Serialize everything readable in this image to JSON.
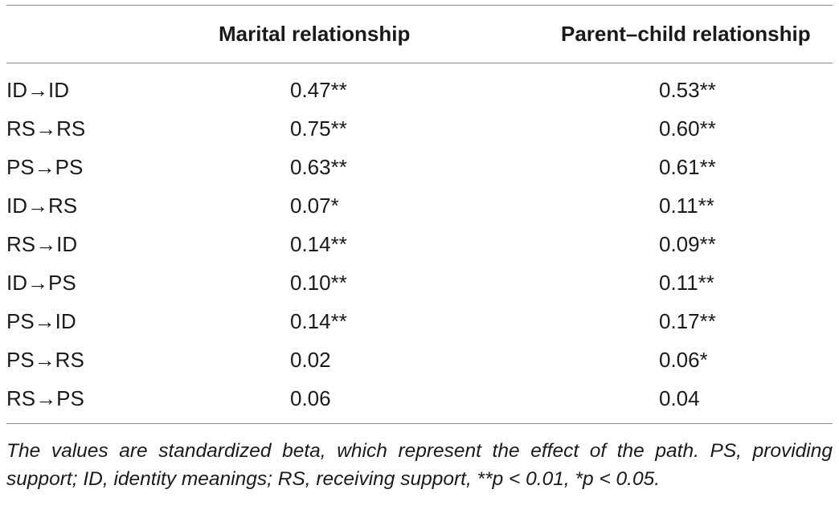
{
  "table": {
    "headers": {
      "path": "",
      "marital": "Marital relationship",
      "parent_child": "Parent–child relationship"
    },
    "rows": [
      {
        "path": "ID→ID",
        "marital": "0.47**",
        "parent_child": "0.53**"
      },
      {
        "path": "RS→RS",
        "marital": "0.75**",
        "parent_child": "0.60**"
      },
      {
        "path": "PS→PS",
        "marital": "0.63**",
        "parent_child": "0.61**"
      },
      {
        "path": "ID→RS",
        "marital": "0.07*",
        "parent_child": "0.11**"
      },
      {
        "path": "RS→ID",
        "marital": "0.14**",
        "parent_child": "0.09**"
      },
      {
        "path": "ID→PS",
        "marital": "0.10**",
        "parent_child": "0.11**"
      },
      {
        "path": "PS→ID",
        "marital": "0.14**",
        "parent_child": "0.17**"
      },
      {
        "path": "PS→RS",
        "marital": "0.02",
        "parent_child": "0.06*"
      },
      {
        "path": "RS→PS",
        "marital": "0.06",
        "parent_child": "0.04"
      }
    ],
    "footnote": "The values are standardized beta, which represent the effect of the path. PS, providing support; ID, identity meanings; RS, receiving support, **p < 0.01, *p < 0.05."
  }
}
